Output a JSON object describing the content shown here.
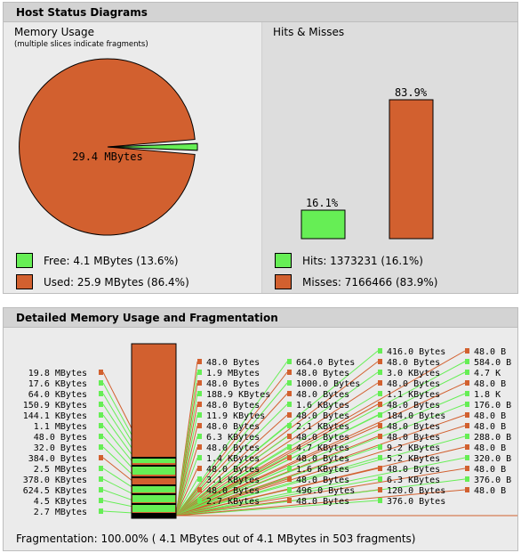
{
  "colors": {
    "used": "#d2602f",
    "free": "#66ee55",
    "hits": "#66ee55",
    "misses": "#d2602f"
  },
  "host_panel": {
    "title": "Host Status Diagrams",
    "memory": {
      "title": "Memory Usage",
      "note": "(multiple slices indicate fragments)",
      "pie_label": "29.4 MBytes",
      "free_label": "Free: 4.1 MBytes (13.6%)",
      "used_label": "Used: 25.9 MBytes (86.4%)"
    },
    "hits_misses": {
      "title": "Hits & Misses",
      "hits_label": "Hits: 1373231 (16.1%)",
      "misses_label": "Misses: 7166466 (83.9%)"
    }
  },
  "detail_panel": {
    "title": "Detailed Memory Usage and Fragmentation",
    "left_labels": [
      "19.8 MBytes",
      "17.6 KBytes",
      "64.0 KBytes",
      "150.9 KBytes",
      "144.1 KBytes",
      "1.1 MBytes",
      "48.0 Bytes",
      "32.0 Bytes",
      "384.0 Bytes",
      "2.5 MBytes",
      "378.0 KBytes",
      "624.5 KBytes",
      "4.5 KBytes",
      "2.7 MBytes"
    ],
    "left_kinds": [
      "u",
      "f",
      "f",
      "f",
      "f",
      "f",
      "f",
      "f",
      "u",
      "f",
      "f",
      "f",
      "f",
      "f"
    ],
    "columns": [
      {
        "labels": [
          "48.0 Bytes",
          "1.9 MBytes",
          "48.0 Bytes",
          "188.9 KBytes",
          "48.0 Bytes",
          "11.9 KBytes",
          "48.0 Bytes",
          "6.3 KBytes",
          "48.0 Bytes",
          "1.4 KBytes",
          "48.0 Bytes",
          "3.1 KBytes",
          "48.0 Bytes",
          "2.7 KBytes"
        ],
        "kinds": [
          "u",
          "f",
          "u",
          "f",
          "u",
          "f",
          "u",
          "f",
          "u",
          "f",
          "u",
          "f",
          "u",
          "f"
        ]
      },
      {
        "labels": [
          "664.0 Bytes",
          "48.0 Bytes",
          "1000.0 Bytes",
          "48.0 Bytes",
          "1.6 KBytes",
          "48.0 Bytes",
          "2.1 KBytes",
          "48.0 Bytes",
          "4.7 KBytes",
          "48.0 Bytes",
          "1.6 KBytes",
          "48.0 Bytes",
          "496.0 Bytes",
          "48.0 Bytes"
        ],
        "kinds": [
          "f",
          "u",
          "f",
          "u",
          "f",
          "u",
          "f",
          "u",
          "f",
          "u",
          "f",
          "u",
          "f",
          "u"
        ]
      },
      {
        "labels": [
          "416.0 Bytes",
          "48.0 Bytes",
          "3.0 KBytes",
          "48.0 Bytes",
          "1.1 KBytes",
          "48.0 Bytes",
          "184.0 Bytes",
          "48.0 Bytes",
          "48.0 Bytes",
          "9.2 KBytes",
          "5.2 KBytes",
          "48.0 Bytes",
          "6.3 KBytes",
          "120.0 Bytes",
          "376.0 Bytes"
        ],
        "kinds": [
          "f",
          "u",
          "f",
          "u",
          "f",
          "u",
          "f",
          "u",
          "u",
          "f",
          "f",
          "u",
          "f",
          "u",
          "f"
        ]
      },
      {
        "labels": [
          "48.0 B",
          "584.0 B",
          "4.7 K",
          "48.0 B",
          "1.8 K",
          "176.0 B",
          "48.0 B",
          "48.0 B",
          "288.0 B",
          "48.0 B",
          "320.0 B",
          "48.0 B",
          "376.0 B",
          "48.0 B"
        ],
        "kinds": [
          "u",
          "f",
          "f",
          "u",
          "f",
          "f",
          "u",
          "u",
          "f",
          "u",
          "f",
          "u",
          "f",
          "u"
        ]
      }
    ],
    "fragmentation": "Fragmentation: 100.00% ( 4.1 MBytes out of 4.1 MBytes in 503 fragments)"
  }
}
